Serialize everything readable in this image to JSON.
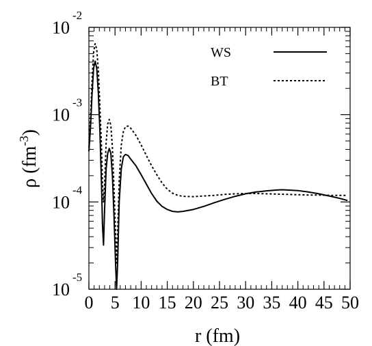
{
  "chart_data": {
    "type": "line",
    "xlabel": "r (fm)",
    "ylabel": {
      "base": "ρ (fm",
      "exponent": "-3",
      "close": ")"
    },
    "xlim": [
      0,
      50
    ],
    "ylim": [
      1e-05,
      0.01
    ],
    "y_scale": "log",
    "grid": false,
    "legend_position": "top-right",
    "x_ticks": [
      "0",
      "5",
      "10",
      "15",
      "20",
      "25",
      "30",
      "35",
      "40",
      "45",
      "50"
    ],
    "y_ticks": [
      {
        "base": "10",
        "exponent": "-5",
        "value": 1e-05
      },
      {
        "base": "10",
        "exponent": "-4",
        "value": 0.0001
      },
      {
        "base": "10",
        "exponent": "-3",
        "value": 0.001
      },
      {
        "base": "10",
        "exponent": "-2",
        "value": 0.01
      }
    ],
    "series": [
      {
        "name": "WS",
        "style": "solid",
        "color": "#000000",
        "points": [
          [
            0.0,
            0.00038
          ],
          [
            0.3,
            0.0007
          ],
          [
            0.6,
            0.0017
          ],
          [
            0.9,
            0.0034
          ],
          [
            1.2,
            0.0041
          ],
          [
            1.5,
            0.0034
          ],
          [
            1.8,
            0.0018
          ],
          [
            2.1,
            0.00066
          ],
          [
            2.4,
            0.00017
          ],
          [
            2.6,
            5.5e-05
          ],
          [
            2.8,
            3.2e-05
          ],
          [
            3.0,
            8e-05
          ],
          [
            3.3,
            0.00024
          ],
          [
            3.6,
            0.00036
          ],
          [
            3.9,
            0.00041
          ],
          [
            4.2,
            0.00036
          ],
          [
            4.5,
            0.0002
          ],
          [
            4.8,
            7e-05
          ],
          [
            5.1,
            2e-05
          ],
          [
            5.3,
            1e-05
          ],
          [
            5.5,
            2e-05
          ],
          [
            5.8,
            0.0001
          ],
          [
            6.2,
            0.00024
          ],
          [
            6.6,
            0.00033
          ],
          [
            7.0,
            0.00035
          ],
          [
            7.5,
            0.00034
          ],
          [
            8.0,
            0.00031
          ],
          [
            9.0,
            0.00026
          ],
          [
            10.0,
            0.000205
          ],
          [
            11.0,
            0.00016
          ],
          [
            12.0,
            0.000125
          ],
          [
            13.0,
            0.000102
          ],
          [
            14.0,
            8.9e-05
          ],
          [
            15.0,
            8.2e-05
          ],
          [
            16.0,
            7.8e-05
          ],
          [
            17.0,
            7.7e-05
          ],
          [
            18.0,
            7.8e-05
          ],
          [
            20.0,
            8.2e-05
          ],
          [
            22.0,
            8.9e-05
          ],
          [
            24.0,
            9.8e-05
          ],
          [
            26.0,
            0.000107
          ],
          [
            28.0,
            0.000116
          ],
          [
            30.0,
            0.000124
          ],
          [
            32.0,
            0.00013
          ],
          [
            34.0,
            0.000134
          ],
          [
            36.0,
            0.000137
          ],
          [
            37.0,
            0.000138
          ],
          [
            38.0,
            0.000137
          ],
          [
            40.0,
            0.000135
          ],
          [
            42.0,
            0.00013
          ],
          [
            44.0,
            0.000124
          ],
          [
            46.0,
            0.000117
          ],
          [
            48.0,
            0.00011
          ],
          [
            49.5,
            0.000104
          ]
        ]
      },
      {
        "name": "BT",
        "style": "dashed",
        "color": "#000000",
        "points": [
          [
            0.0,
            0.00042
          ],
          [
            0.3,
            0.0009
          ],
          [
            0.6,
            0.0024
          ],
          [
            0.9,
            0.0052
          ],
          [
            1.2,
            0.0065
          ],
          [
            1.5,
            0.0056
          ],
          [
            1.8,
            0.0033
          ],
          [
            2.1,
            0.0013
          ],
          [
            2.4,
            0.00045
          ],
          [
            2.6,
            0.00016
          ],
          [
            2.8,
            0.0001
          ],
          [
            3.0,
            0.00016
          ],
          [
            3.3,
            0.00048
          ],
          [
            3.6,
            0.00078
          ],
          [
            3.9,
            0.00088
          ],
          [
            4.2,
            0.00075
          ],
          [
            4.5,
            0.00042
          ],
          [
            4.8,
            0.00015
          ],
          [
            5.1,
            4.5e-05
          ],
          [
            5.3,
            2e-05
          ],
          [
            5.5,
            4.5e-05
          ],
          [
            5.8,
            0.00018
          ],
          [
            6.2,
            0.00045
          ],
          [
            6.6,
            0.00064
          ],
          [
            7.0,
            0.00073
          ],
          [
            7.5,
            0.00074
          ],
          [
            8.0,
            0.0007
          ],
          [
            9.0,
            0.00058
          ],
          [
            10.0,
            0.00045
          ],
          [
            11.0,
            0.00034
          ],
          [
            12.0,
            0.00026
          ],
          [
            13.0,
            0.000205
          ],
          [
            14.0,
            0.000165
          ],
          [
            15.0,
            0.00014
          ],
          [
            16.0,
            0.000126
          ],
          [
            17.0,
            0.000119
          ],
          [
            18.0,
            0.000116
          ],
          [
            20.0,
            0.000115
          ],
          [
            22.0,
            0.000117
          ],
          [
            24.0,
            0.000119
          ],
          [
            26.0,
            0.000122
          ],
          [
            28.0,
            0.000124
          ],
          [
            30.0,
            0.000125
          ],
          [
            32.0,
            0.000125
          ],
          [
            34.0,
            0.000124
          ],
          [
            36.0,
            0.000123
          ],
          [
            38.0,
            0.000122
          ],
          [
            40.0,
            0.000121
          ],
          [
            42.0,
            0.00012
          ],
          [
            44.0,
            0.00012
          ],
          [
            46.0,
            0.000119
          ],
          [
            48.0,
            0.000119
          ],
          [
            49.5,
            0.000119
          ]
        ]
      }
    ]
  }
}
